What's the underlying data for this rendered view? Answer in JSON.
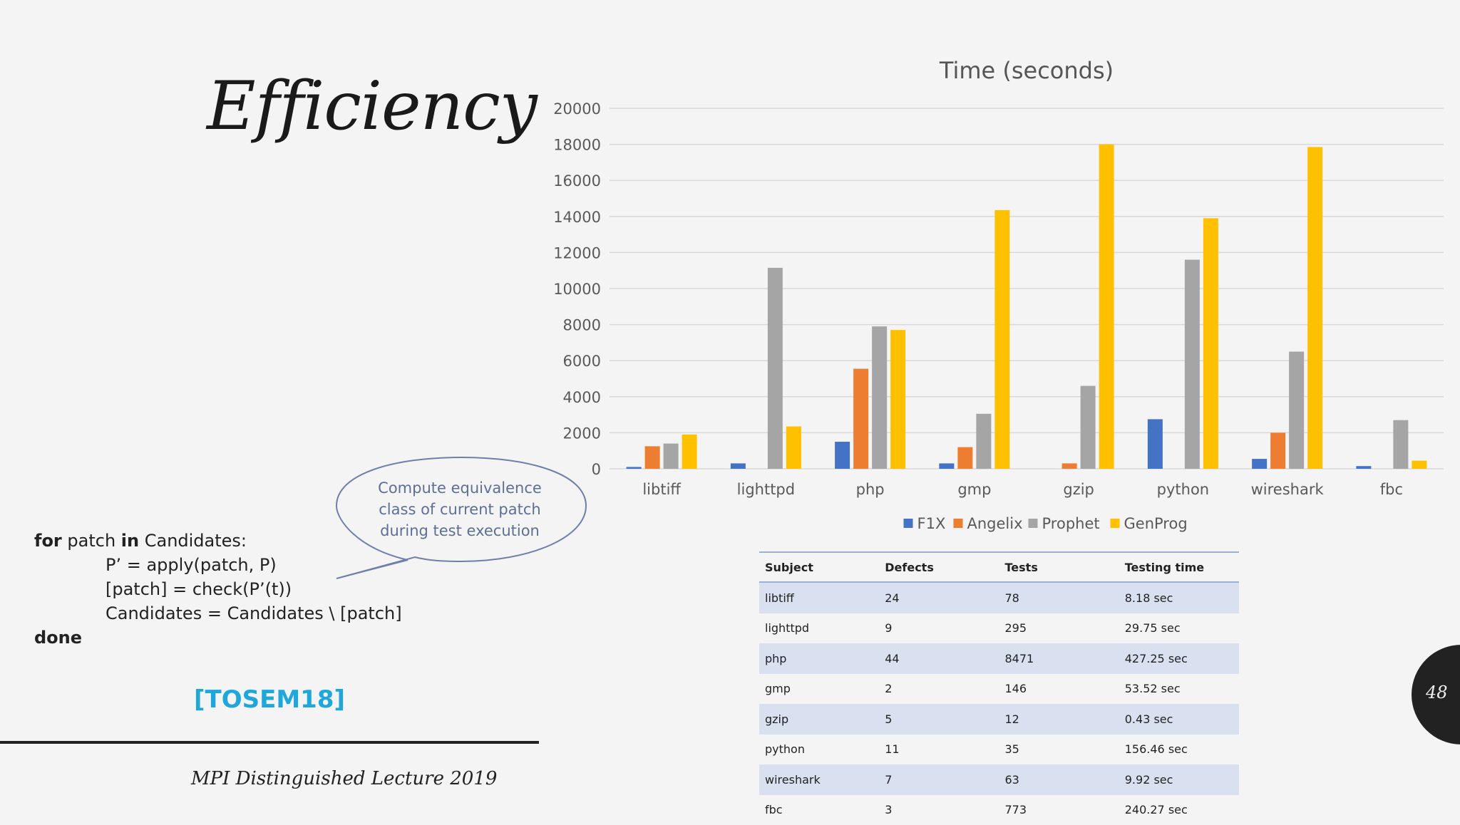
{
  "slide": {
    "title": "Efficiency",
    "footer": "MPI Distinguished Lecture 2019",
    "page_number": "48",
    "citation": "[TOSEM18]"
  },
  "code": {
    "line1_kw1": "for",
    "line1_mid": " patch ",
    "line1_kw2": "in",
    "line1_end": " Candidates:",
    "line2": "P’ = apply(patch, P)",
    "line3": "[patch] = check(P’(t))",
    "line4": "Candidates = Candidates \\ [patch]",
    "line5": "done"
  },
  "bubble": {
    "lines": [
      "Compute equivalence",
      "class of current patch",
      "during test execution"
    ]
  },
  "colors": {
    "F1X": "#4472c4",
    "Angelix": "#ed7d31",
    "Prophet": "#a5a5a5",
    "GenProg": "#ffc000"
  },
  "chart_data": {
    "type": "bar",
    "title": "Time (seconds)",
    "categories": [
      "libtiff",
      "lighttpd",
      "php",
      "gmp",
      "gzip",
      "python",
      "wireshark",
      "fbc"
    ],
    "series": [
      {
        "name": "F1X",
        "values": [
          100,
          300,
          1500,
          300,
          0,
          2750,
          550,
          150
        ]
      },
      {
        "name": "Angelix",
        "values": [
          1250,
          0,
          5550,
          1200,
          300,
          0,
          2000,
          0
        ]
      },
      {
        "name": "Prophet",
        "values": [
          1400,
          11150,
          7900,
          3050,
          4600,
          11600,
          6500,
          2700
        ]
      },
      {
        "name": "GenProg",
        "values": [
          1900,
          2350,
          7700,
          14350,
          18000,
          13900,
          17850,
          450
        ]
      }
    ],
    "ylim": [
      0,
      20000
    ],
    "yticks": [
      0,
      2000,
      4000,
      6000,
      8000,
      10000,
      12000,
      14000,
      16000,
      18000,
      20000
    ],
    "xlabel": "",
    "ylabel": "",
    "grid": true,
    "legend": "bottom"
  },
  "table": {
    "headers": [
      "Subject",
      "Defects",
      "Tests",
      "Testing time"
    ],
    "rows": [
      [
        "libtiff",
        "24",
        "78",
        "8.18 sec"
      ],
      [
        "lighttpd",
        "9",
        "295",
        "29.75 sec"
      ],
      [
        "php",
        "44",
        "8471",
        "427.25 sec"
      ],
      [
        "gmp",
        "2",
        "146",
        "53.52 sec"
      ],
      [
        "gzip",
        "5",
        "12",
        "0.43 sec"
      ],
      [
        "python",
        "11",
        "35",
        "156.46 sec"
      ],
      [
        "wireshark",
        "7",
        "63",
        "9.92 sec"
      ],
      [
        "fbc",
        "3",
        "773",
        "240.27 sec"
      ]
    ]
  }
}
